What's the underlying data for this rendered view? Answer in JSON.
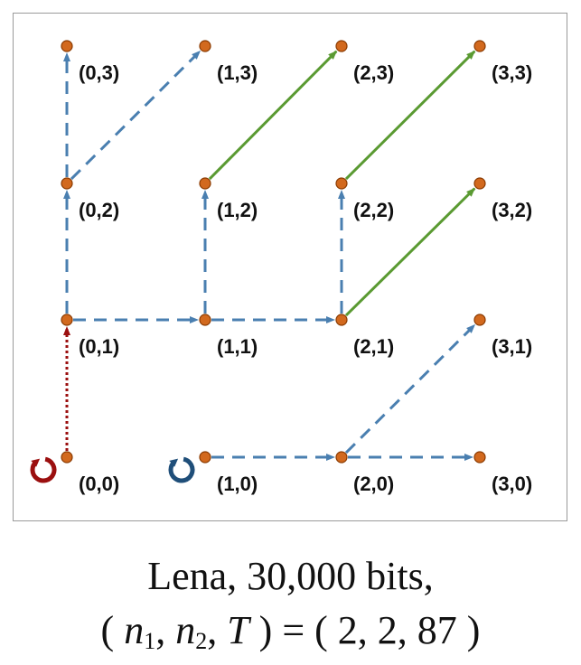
{
  "diagram": {
    "nodes": [
      {
        "id": "0,0",
        "label": "(0,0)"
      },
      {
        "id": "1,0",
        "label": "(1,0)"
      },
      {
        "id": "2,0",
        "label": "(2,0)"
      },
      {
        "id": "3,0",
        "label": "(3,0)"
      },
      {
        "id": "0,1",
        "label": "(0,1)"
      },
      {
        "id": "1,1",
        "label": "(1,1)"
      },
      {
        "id": "2,1",
        "label": "(2,1)"
      },
      {
        "id": "3,1",
        "label": "(3,1)"
      },
      {
        "id": "0,2",
        "label": "(0,2)"
      },
      {
        "id": "1,2",
        "label": "(1,2)"
      },
      {
        "id": "2,2",
        "label": "(2,2)"
      },
      {
        "id": "3,2",
        "label": "(3,2)"
      },
      {
        "id": "0,3",
        "label": "(0,3)"
      },
      {
        "id": "1,3",
        "label": "(1,3)"
      },
      {
        "id": "2,3",
        "label": "(2,3)"
      },
      {
        "id": "3,3",
        "label": "(3,3)"
      }
    ],
    "edges": [
      {
        "from": "0,0",
        "to": "0,1",
        "style": "dotted-red"
      },
      {
        "from": "0,1",
        "to": "0,2",
        "style": "dashed-blue"
      },
      {
        "from": "0,2",
        "to": "0,3",
        "style": "dashed-blue"
      },
      {
        "from": "0,2",
        "to": "1,3",
        "style": "dashed-blue"
      },
      {
        "from": "0,1",
        "to": "1,1",
        "style": "dashed-blue"
      },
      {
        "from": "1,1",
        "to": "2,1",
        "style": "dashed-blue"
      },
      {
        "from": "1,1",
        "to": "1,2",
        "style": "dashed-blue"
      },
      {
        "from": "2,1",
        "to": "2,2",
        "style": "dashed-blue"
      },
      {
        "from": "1,0",
        "to": "2,0",
        "style": "dashed-blue"
      },
      {
        "from": "2,0",
        "to": "3,0",
        "style": "dashed-blue"
      },
      {
        "from": "2,0",
        "to": "3,1",
        "style": "dashed-blue"
      },
      {
        "from": "1,2",
        "to": "2,3",
        "style": "solid-green"
      },
      {
        "from": "2,2",
        "to": "3,3",
        "style": "solid-green"
      },
      {
        "from": "2,1",
        "to": "3,2",
        "style": "solid-green"
      }
    ],
    "self_loops": [
      {
        "node": "0,0",
        "color": "#9b0f0f"
      },
      {
        "node": "1,0",
        "color": "#1f4e79"
      }
    ],
    "colors": {
      "node_fill": "#d2691e",
      "node_stroke": "#8a3a00",
      "dashed_blue": "#4a7fb0",
      "dotted_red": "#9b0f0f",
      "solid_green": "#5a9a32"
    }
  },
  "caption": {
    "line1": "Lena, 30,000 bits,",
    "open_paren": "( ",
    "n": "n",
    "sub1": "1",
    "sep1": ", ",
    "sub2": "2",
    "sep2": ", ",
    "T": "T",
    "equals": " ) = ( ",
    "values": "2, 2, 87",
    "close_paren": " )"
  }
}
